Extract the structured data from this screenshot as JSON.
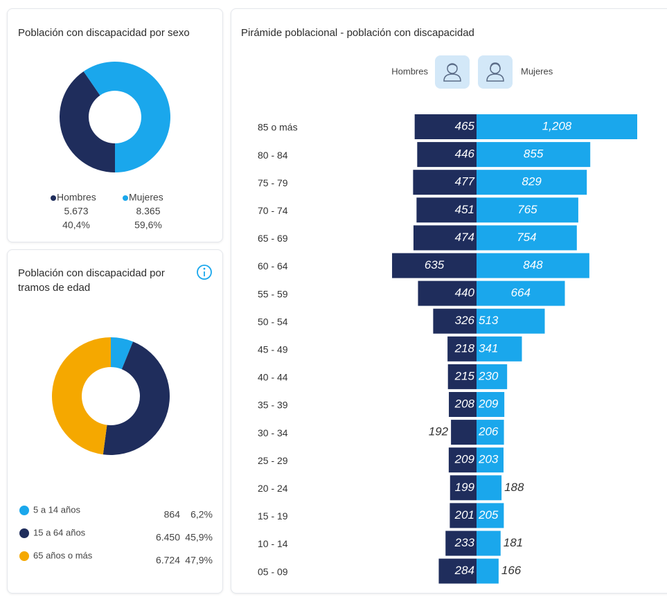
{
  "chart_data": [
    {
      "type": "donut",
      "title": "Población con discapacidad por sexo",
      "categories": [
        "Hombres",
        "Mujeres"
      ],
      "values": [
        5673,
        8365
      ],
      "value_labels": [
        "5.673",
        "8.365"
      ],
      "shares": [
        40.4,
        59.6
      ],
      "share_labels": [
        "40,4%",
        "59,6%"
      ],
      "colors": [
        "#1f2d5c",
        "#1aa7ec"
      ]
    },
    {
      "type": "donut",
      "title": "Población con discapacidad por tramos de edad",
      "categories": [
        "5 a 14 años",
        "15 a 64 años",
        "65 años o más"
      ],
      "values": [
        864,
        6450,
        6724
      ],
      "value_labels": [
        "864",
        "6.450",
        "6.724"
      ],
      "shares": [
        6.2,
        45.9,
        47.9
      ],
      "share_labels": [
        "6,2%",
        "45,9%",
        "47,9%"
      ],
      "colors": [
        "#1aa7ec",
        "#1f2d5c",
        "#f5a800"
      ]
    },
    {
      "type": "pyramid",
      "title": "Pirámide poblacional - población con discapacidad",
      "categories": [
        "85 o más",
        "80 - 84",
        "75 - 79",
        "70 - 74",
        "65 - 69",
        "60 - 64",
        "55 - 59",
        "50 - 54",
        "45 - 49",
        "40 - 44",
        "35 - 39",
        "30 - 34",
        "25 - 29",
        "20 - 24",
        "15 - 19",
        "10 - 14",
        "05 - 09"
      ],
      "series": [
        {
          "name": "Hombres",
          "color": "#1f2d5c",
          "values": [
            465,
            446,
            477,
            451,
            474,
            635,
            440,
            326,
            218,
            215,
            208,
            192,
            209,
            199,
            201,
            233,
            284
          ]
        },
        {
          "name": "Mujeres",
          "color": "#1aa7ec",
          "values": [
            1208,
            855,
            829,
            765,
            754,
            848,
            664,
            513,
            341,
            230,
            209,
            206,
            203,
            188,
            205,
            181,
            166
          ],
          "value_labels": [
            "1,208",
            "855",
            "829",
            "765",
            "754",
            "848",
            "664",
            "513",
            "341",
            "230",
            "209",
            "206",
            "203",
            "188",
            "205",
            "181",
            "166"
          ]
        }
      ]
    }
  ]
}
